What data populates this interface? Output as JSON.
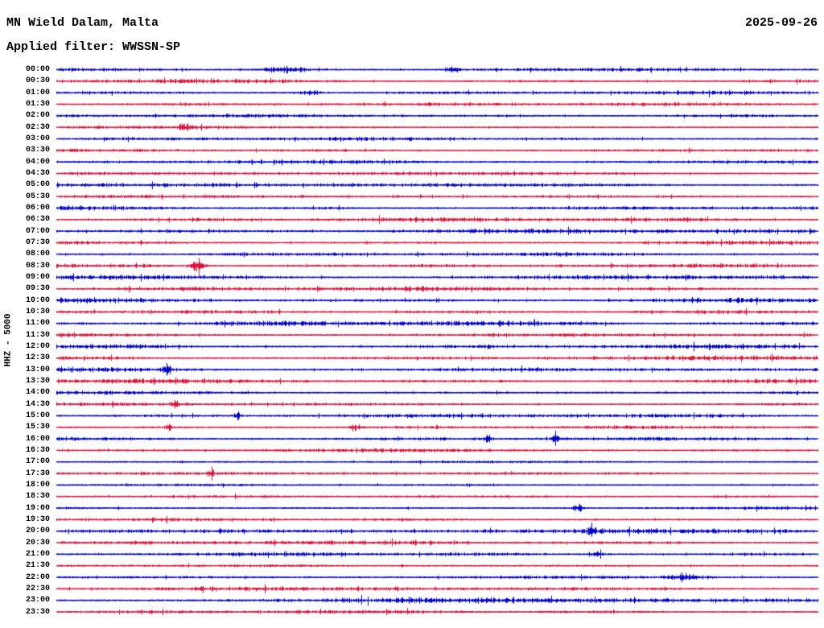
{
  "header": {
    "station_title": "MN Wield Dalam, Malta",
    "date": "2025-09-26",
    "filter_line": "Applied filter: WWSSN-SP"
  },
  "axis": {
    "scale_label": "HHZ - 5000"
  },
  "chart_data": {
    "type": "seismogram-helicorder",
    "title": "MN Wield Dalam, Malta",
    "date": "2025-09-26",
    "applied_filter": "WWSSN-SP",
    "channel": "HHZ",
    "scale": 5000,
    "minutes_per_line": 30,
    "legend_position": "none",
    "grid": false,
    "colors": {
      "hour": "#0000CD",
      "half_hour": "#DC143C",
      "text": "#000000",
      "background": "#FFFFFF"
    },
    "rows": [
      {
        "t": "00:00",
        "c": "blue",
        "a": 2.2,
        "ev": [
          [
            0.3,
            2.5,
            20
          ],
          [
            0.52,
            3.0,
            6
          ]
        ]
      },
      {
        "t": "00:30",
        "c": "red",
        "a": 2.2,
        "ev": []
      },
      {
        "t": "01:00",
        "c": "blue",
        "a": 2.3,
        "ev": [
          [
            0.33,
            2.0,
            10
          ]
        ]
      },
      {
        "t": "01:30",
        "c": "red",
        "a": 2.1,
        "ev": []
      },
      {
        "t": "02:00",
        "c": "blue",
        "a": 1.9,
        "ev": []
      },
      {
        "t": "02:30",
        "c": "red",
        "a": 2.0,
        "ev": [
          [
            0.17,
            2.5,
            8
          ]
        ]
      },
      {
        "t": "03:00",
        "c": "blue",
        "a": 2.0,
        "ev": []
      },
      {
        "t": "03:30",
        "c": "red",
        "a": 2.0,
        "ev": []
      },
      {
        "t": "04:00",
        "c": "blue",
        "a": 2.2,
        "ev": []
      },
      {
        "t": "04:30",
        "c": "red",
        "a": 2.1,
        "ev": []
      },
      {
        "t": "05:00",
        "c": "blue",
        "a": 2.1,
        "ev": []
      },
      {
        "t": "05:30",
        "c": "red",
        "a": 2.1,
        "ev": []
      },
      {
        "t": "06:00",
        "c": "blue",
        "a": 2.4,
        "ev": []
      },
      {
        "t": "06:30",
        "c": "red",
        "a": 2.4,
        "ev": []
      },
      {
        "t": "07:00",
        "c": "blue",
        "a": 2.4,
        "ev": []
      },
      {
        "t": "07:30",
        "c": "red",
        "a": 2.2,
        "ev": []
      },
      {
        "t": "08:00",
        "c": "blue",
        "a": 2.4,
        "ev": []
      },
      {
        "t": "08:30",
        "c": "red",
        "a": 2.2,
        "ev": [
          [
            0.185,
            4.5,
            7
          ]
        ]
      },
      {
        "t": "09:00",
        "c": "blue",
        "a": 2.5,
        "ev": []
      },
      {
        "t": "09:30",
        "c": "red",
        "a": 2.5,
        "ev": []
      },
      {
        "t": "10:00",
        "c": "blue",
        "a": 2.8,
        "ev": []
      },
      {
        "t": "10:30",
        "c": "red",
        "a": 2.8,
        "ev": []
      },
      {
        "t": "11:00",
        "c": "blue",
        "a": 2.8,
        "ev": []
      },
      {
        "t": "11:30",
        "c": "red",
        "a": 2.6,
        "ev": []
      },
      {
        "t": "12:00",
        "c": "blue",
        "a": 2.8,
        "ev": []
      },
      {
        "t": "12:30",
        "c": "red",
        "a": 2.6,
        "ev": []
      },
      {
        "t": "13:00",
        "c": "blue",
        "a": 2.6,
        "ev": [
          [
            0.145,
            5.0,
            4
          ]
        ]
      },
      {
        "t": "13:30",
        "c": "red",
        "a": 2.5,
        "ev": []
      },
      {
        "t": "14:00",
        "c": "blue",
        "a": 2.2,
        "ev": []
      },
      {
        "t": "14:30",
        "c": "red",
        "a": 2.2,
        "ev": [
          [
            0.155,
            2.5,
            4
          ]
        ]
      },
      {
        "t": "15:00",
        "c": "blue",
        "a": 2.0,
        "ev": [
          [
            0.238,
            3.5,
            3
          ]
        ]
      },
      {
        "t": "15:30",
        "c": "red",
        "a": 2.0,
        "ev": [
          [
            0.148,
            3.0,
            3
          ],
          [
            0.39,
            3.0,
            3
          ]
        ]
      },
      {
        "t": "16:00",
        "c": "blue",
        "a": 2.0,
        "ev": [
          [
            0.567,
            5.5,
            2.5
          ],
          [
            0.655,
            6.0,
            2.5
          ]
        ]
      },
      {
        "t": "16:30",
        "c": "red",
        "a": 1.8,
        "ev": []
      },
      {
        "t": "17:00",
        "c": "blue",
        "a": 1.6,
        "ev": []
      },
      {
        "t": "17:30",
        "c": "red",
        "a": 1.6,
        "ev": [
          [
            0.203,
            4.5,
            2.5
          ]
        ]
      },
      {
        "t": "18:00",
        "c": "blue",
        "a": 1.6,
        "ev": []
      },
      {
        "t": "18:30",
        "c": "red",
        "a": 1.7,
        "ev": []
      },
      {
        "t": "19:00",
        "c": "blue",
        "a": 1.9,
        "ev": [
          [
            0.685,
            3.5,
            4
          ]
        ]
      },
      {
        "t": "19:30",
        "c": "red",
        "a": 1.7,
        "ev": []
      },
      {
        "t": "20:00",
        "c": "blue",
        "a": 2.0,
        "ev": [
          [
            0.703,
            5.0,
            3
          ],
          [
            0.85,
            1.2,
            120
          ]
        ]
      },
      {
        "t": "20:30",
        "c": "red",
        "a": 2.2,
        "ev": []
      },
      {
        "t": "21:00",
        "c": "blue",
        "a": 2.1,
        "ev": [
          [
            0.71,
            2.5,
            10
          ]
        ]
      },
      {
        "t": "21:30",
        "c": "red",
        "a": 2.1,
        "ev": []
      },
      {
        "t": "22:00",
        "c": "blue",
        "a": 1.9,
        "ev": [
          [
            0.83,
            2.0,
            15
          ]
        ]
      },
      {
        "t": "22:30",
        "c": "red",
        "a": 2.1,
        "ev": []
      },
      {
        "t": "23:00",
        "c": "blue",
        "a": 2.3,
        "ev": [
          [
            0.5,
            1.0,
            200
          ]
        ]
      },
      {
        "t": "23:30",
        "c": "red",
        "a": 2.2,
        "ev": []
      }
    ]
  }
}
